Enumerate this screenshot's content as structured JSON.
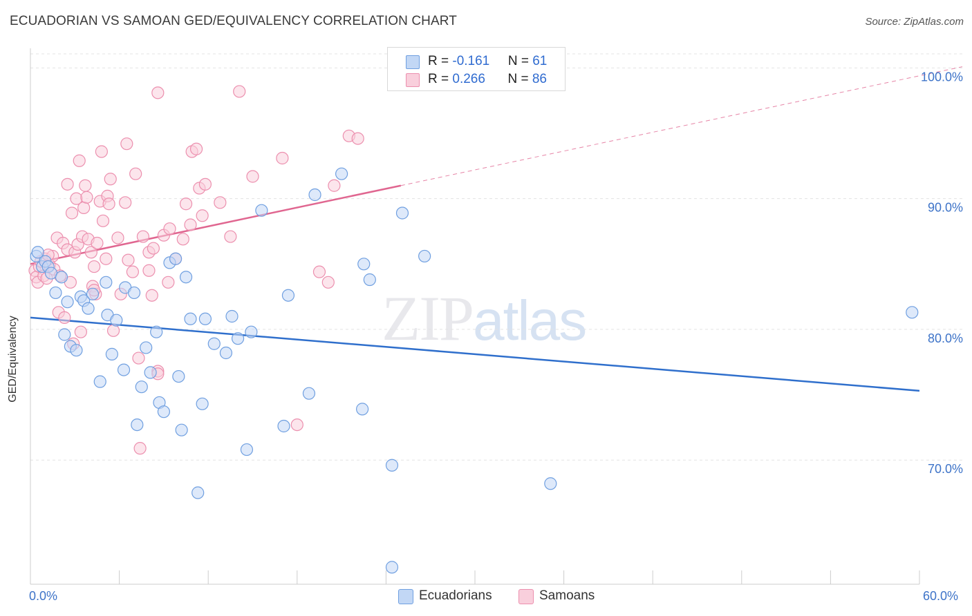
{
  "title": "ECUADORIAN VS SAMOAN GED/EQUIVALENCY CORRELATION CHART",
  "source": "Source: ZipAtlas.com",
  "watermark": {
    "zip": "ZIP",
    "atlas": "atlas"
  },
  "legend": {
    "rows": [
      {
        "r_label": "R = ",
        "r_value": "-0.161",
        "n_label": "N = ",
        "n_value": "61",
        "color": "#9dbfee"
      },
      {
        "r_label": "R = ",
        "r_value": "0.266",
        "n_label": "N = ",
        "n_value": "86",
        "color": "#f5afc6"
      }
    ]
  },
  "bottom_legend": [
    {
      "label": "Ecuadorians",
      "color": "#9dbfee"
    },
    {
      "label": "Samoans",
      "color": "#f5afc6"
    }
  ],
  "x_axis": {
    "min_label": "0.0%",
    "max_label": "60.0%"
  },
  "chart_data": {
    "type": "scatter",
    "title": "ECUADORIAN VS SAMOAN GED/EQUIVALENCY CORRELATION CHART",
    "xlabel": "",
    "ylabel": "GED/Equivalency",
    "xlim": [
      0,
      60
    ],
    "ylim": [
      60.5,
      101.5
    ],
    "y_ticks": [
      {
        "value": 70,
        "label": "70.0%"
      },
      {
        "value": 80,
        "label": "80.0%"
      },
      {
        "value": 90,
        "label": "90.0%"
      },
      {
        "value": 100,
        "label": "100.0%"
      }
    ],
    "x_ticks": [
      0,
      6,
      12,
      18,
      24,
      30,
      36,
      42,
      48,
      54,
      60
    ],
    "grid": true,
    "legend_position": "top-center",
    "series": [
      {
        "name": "Ecuadorians",
        "color": "#6f9fe0",
        "fill": "#c2d7f5",
        "trend": {
          "x": [
            0,
            60
          ],
          "y": [
            80.9,
            75.3
          ],
          "color": "#2f6fcc",
          "dashed_from": null
        },
        "points": [
          [
            0.4,
            85.6
          ],
          [
            0.5,
            85.9
          ],
          [
            0.8,
            84.8
          ],
          [
            1.0,
            85.2
          ],
          [
            1.2,
            84.8
          ],
          [
            1.4,
            84.3
          ],
          [
            1.7,
            82.8
          ],
          [
            2.1,
            84.0
          ],
          [
            2.3,
            79.6
          ],
          [
            2.5,
            82.1
          ],
          [
            2.7,
            78.7
          ],
          [
            3.1,
            78.4
          ],
          [
            3.4,
            82.5
          ],
          [
            3.6,
            82.2
          ],
          [
            3.9,
            81.6
          ],
          [
            4.2,
            82.7
          ],
          [
            4.7,
            76.0
          ],
          [
            5.1,
            83.6
          ],
          [
            5.2,
            81.1
          ],
          [
            5.5,
            78.1
          ],
          [
            5.8,
            80.7
          ],
          [
            6.4,
            83.2
          ],
          [
            6.3,
            76.9
          ],
          [
            7.0,
            82.8
          ],
          [
            7.2,
            72.7
          ],
          [
            7.5,
            75.6
          ],
          [
            7.8,
            78.6
          ],
          [
            8.1,
            76.7
          ],
          [
            8.5,
            79.8
          ],
          [
            8.7,
            74.4
          ],
          [
            9.0,
            73.7
          ],
          [
            9.4,
            85.1
          ],
          [
            9.8,
            85.4
          ],
          [
            10.0,
            76.4
          ],
          [
            10.2,
            72.3
          ],
          [
            10.5,
            84.0
          ],
          [
            10.8,
            80.8
          ],
          [
            11.3,
            67.5
          ],
          [
            11.6,
            74.3
          ],
          [
            11.8,
            80.8
          ],
          [
            12.4,
            78.9
          ],
          [
            13.2,
            78.2
          ],
          [
            13.6,
            81.0
          ],
          [
            14.0,
            79.3
          ],
          [
            14.6,
            70.8
          ],
          [
            14.9,
            79.8
          ],
          [
            15.6,
            89.1
          ],
          [
            17.1,
            72.6
          ],
          [
            17.4,
            82.6
          ],
          [
            18.8,
            75.1
          ],
          [
            19.2,
            90.3
          ],
          [
            21.0,
            91.9
          ],
          [
            22.4,
            73.9
          ],
          [
            22.5,
            85.0
          ],
          [
            22.9,
            83.8
          ],
          [
            24.4,
            69.6
          ],
          [
            25.1,
            88.9
          ],
          [
            26.6,
            85.6
          ],
          [
            35.1,
            68.2
          ],
          [
            24.4,
            61.8
          ],
          [
            59.5,
            81.3
          ]
        ]
      },
      {
        "name": "Samoans",
        "color": "#ec8fae",
        "fill": "#f9cfdc",
        "trend": {
          "x": [
            0,
            60
          ],
          "y": [
            85.0,
            99.4
          ],
          "color": "#e06690",
          "solid_until": 25
        },
        "points": [
          [
            0.3,
            84.5
          ],
          [
            0.4,
            84.0
          ],
          [
            0.5,
            83.6
          ],
          [
            0.6,
            84.8
          ],
          [
            0.7,
            85.2
          ],
          [
            0.9,
            84.1
          ],
          [
            1.0,
            85.4
          ],
          [
            1.1,
            83.9
          ],
          [
            1.3,
            84.9
          ],
          [
            1.5,
            85.6
          ],
          [
            1.6,
            84.6
          ],
          [
            1.8,
            87.0
          ],
          [
            1.9,
            81.3
          ],
          [
            2.0,
            84.1
          ],
          [
            2.2,
            86.6
          ],
          [
            2.3,
            80.9
          ],
          [
            2.5,
            86.1
          ],
          [
            2.5,
            91.1
          ],
          [
            2.7,
            83.6
          ],
          [
            2.8,
            88.9
          ],
          [
            2.9,
            78.9
          ],
          [
            3.0,
            85.9
          ],
          [
            3.1,
            90.0
          ],
          [
            3.2,
            86.5
          ],
          [
            3.3,
            92.9
          ],
          [
            3.4,
            79.8
          ],
          [
            3.5,
            87.1
          ],
          [
            3.6,
            89.3
          ],
          [
            3.7,
            91.0
          ],
          [
            3.8,
            90.1
          ],
          [
            3.9,
            86.9
          ],
          [
            4.1,
            85.9
          ],
          [
            4.2,
            83.3
          ],
          [
            4.3,
            84.8
          ],
          [
            4.4,
            82.7
          ],
          [
            4.5,
            86.6
          ],
          [
            4.7,
            89.8
          ],
          [
            4.8,
            93.6
          ],
          [
            4.9,
            88.3
          ],
          [
            5.1,
            85.4
          ],
          [
            5.2,
            90.2
          ],
          [
            5.3,
            89.6
          ],
          [
            5.4,
            91.5
          ],
          [
            5.6,
            79.9
          ],
          [
            5.9,
            87.0
          ],
          [
            6.1,
            82.7
          ],
          [
            6.4,
            89.7
          ],
          [
            6.5,
            94.2
          ],
          [
            6.6,
            85.3
          ],
          [
            6.9,
            84.4
          ],
          [
            7.1,
            91.9
          ],
          [
            7.3,
            77.8
          ],
          [
            7.4,
            70.9
          ],
          [
            7.6,
            87.1
          ],
          [
            8.0,
            84.5
          ],
          [
            8.0,
            85.9
          ],
          [
            8.2,
            82.6
          ],
          [
            8.3,
            86.2
          ],
          [
            8.6,
            76.8
          ],
          [
            8.6,
            98.1
          ],
          [
            9.0,
            87.2
          ],
          [
            9.3,
            83.6
          ],
          [
            9.4,
            87.7
          ],
          [
            9.8,
            85.4
          ],
          [
            10.3,
            86.9
          ],
          [
            10.5,
            89.6
          ],
          [
            10.8,
            88.0
          ],
          [
            10.9,
            93.6
          ],
          [
            11.2,
            93.8
          ],
          [
            11.4,
            90.8
          ],
          [
            11.6,
            88.7
          ],
          [
            11.8,
            91.1
          ],
          [
            12.8,
            89.7
          ],
          [
            13.5,
            87.1
          ],
          [
            14.1,
            98.2
          ],
          [
            15.0,
            91.7
          ],
          [
            17.0,
            93.1
          ],
          [
            18.0,
            72.7
          ],
          [
            19.5,
            84.4
          ],
          [
            20.1,
            83.6
          ],
          [
            20.5,
            91.0
          ],
          [
            21.5,
            94.8
          ],
          [
            22.1,
            94.6
          ],
          [
            4.3,
            83.0
          ],
          [
            1.2,
            85.7
          ],
          [
            8.6,
            76.6
          ]
        ]
      }
    ]
  }
}
